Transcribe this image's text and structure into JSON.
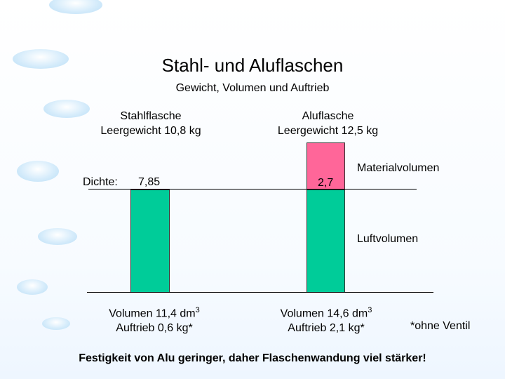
{
  "title": "Stahl- und Aluflaschen",
  "subtitle": "Gewicht, Volumen und Auftrieb",
  "steel": {
    "head_line1": "Stahlflasche",
    "head_line2": "Leergewicht 10,8 kg",
    "density_label": "Dichte:",
    "density_value": "7,85",
    "vol_text": "Volumen 11,4 dm",
    "vol_exp": "3",
    "buoyancy": "Auftrieb 0,6 kg*"
  },
  "alu": {
    "head_line1": "Aluflasche",
    "head_line2": "Leergewicht 12,5 kg",
    "density_value": "2,7",
    "vol_text": "Volumen 14,6 dm",
    "vol_exp": "3",
    "buoyancy": "Auftrieb 2,1 kg*"
  },
  "legend": {
    "material": "Materialvolumen",
    "air": "Luftvolumen"
  },
  "note": "*ohne Ventil",
  "footer": "Festigkeit von Alu geringer, daher Flaschenwandung viel stärker!",
  "colors": {
    "air": "#00cc99",
    "material": "#ff6699"
  }
}
